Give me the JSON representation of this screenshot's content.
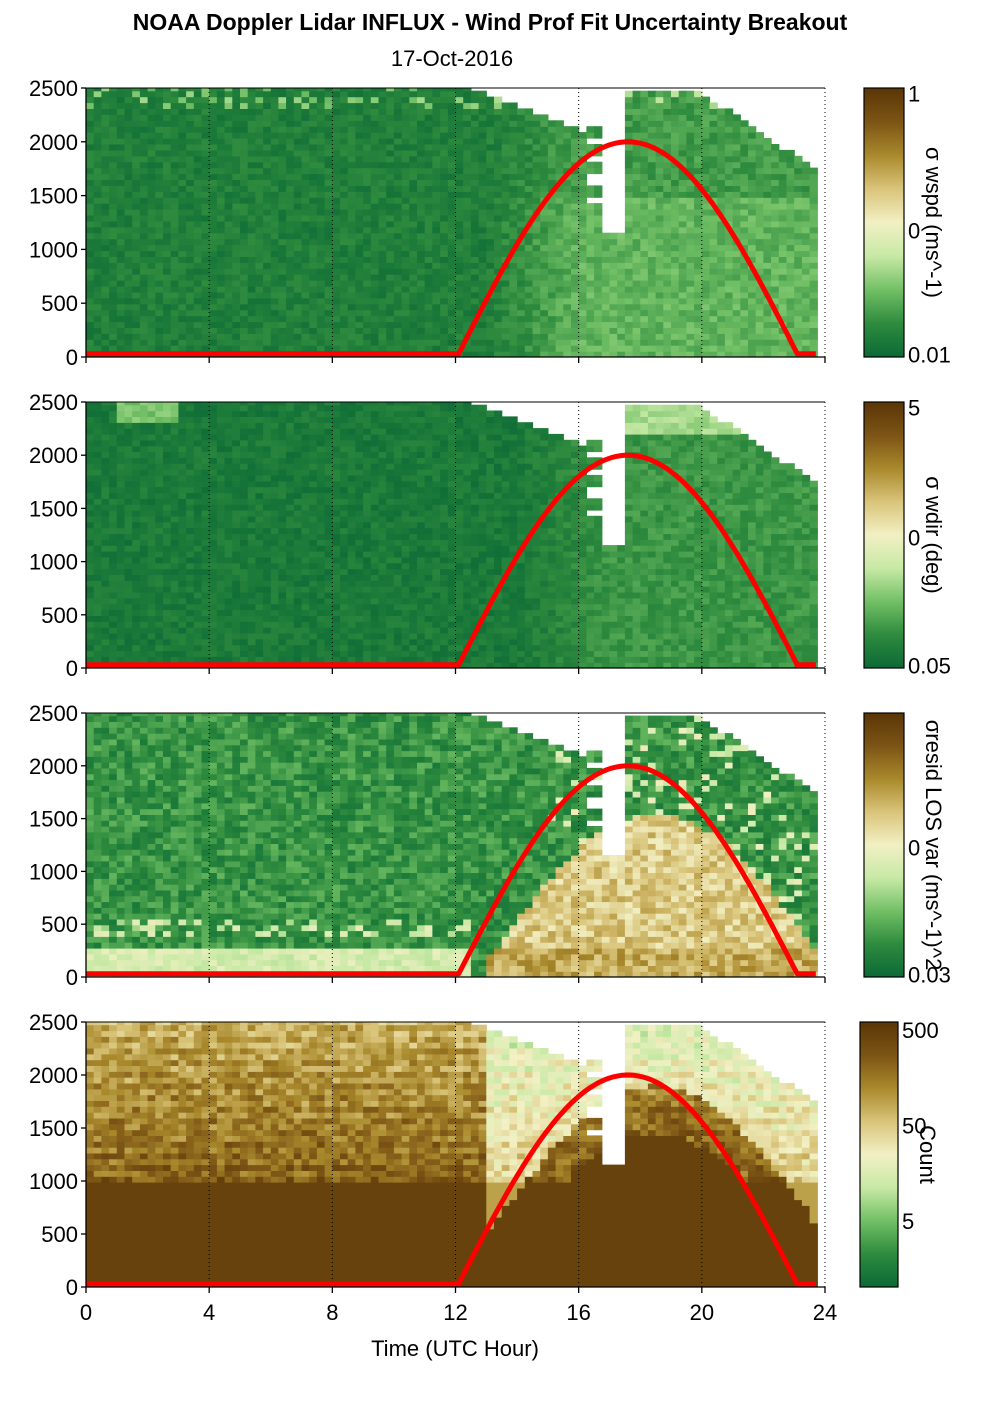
{
  "chart_data": [
    {
      "type": "heatmap",
      "panel": 1,
      "title": "NOAA Doppler Lidar INFLUX - Wind Prof Fit Uncertainty Breakout",
      "subtitle": "17-Oct-2016",
      "xlabel": "",
      "ylabel": "",
      "colorbar_label": "σ wspd (ms^-1)",
      "colorbar_ticks": [
        "1",
        "0",
        "0.01"
      ],
      "yticks": [
        "0",
        "500",
        "1000",
        "1500",
        "2000",
        "2500"
      ],
      "xlim": [
        0,
        24
      ],
      "ylim": [
        0,
        2500
      ],
      "colormap": [
        "#0b6a36",
        "#2e8b3e",
        "#72c066",
        "#c7e9a5",
        "#f2f0c4",
        "#d9c47a",
        "#a9892c",
        "#7c5415",
        "#5a3606"
      ],
      "field": "green-dominated; moderate green/light-green texture after 13 UTC below 1500 m; missing data (white) in upper levels after 13 UTC and columns near 16.7–17.5 UTC",
      "sun_elevation_curve": {
        "name": "",
        "color": "#ff0000",
        "x": [
          0,
          12,
          13,
          14,
          15,
          16,
          17,
          17.5,
          18,
          19,
          20,
          21,
          22,
          23,
          23.8
        ],
        "y": [
          20,
          20,
          500,
          950,
          1400,
          1750,
          1960,
          2000,
          1980,
          1790,
          1430,
          990,
          520,
          60,
          20
        ]
      }
    },
    {
      "type": "heatmap",
      "panel": 2,
      "xlabel": "",
      "ylabel": "",
      "colorbar_label": "σ wdir (deg)",
      "colorbar_ticks": [
        "5",
        "0",
        "0.05"
      ],
      "yticks": [
        "0",
        "500",
        "1000",
        "1500",
        "2000",
        "2500"
      ],
      "xlim": [
        0,
        24
      ],
      "ylim": [
        0,
        2500
      ],
      "colormap": [
        "#0b6a36",
        "#2e8b3e",
        "#72c066",
        "#c7e9a5",
        "#f2f0c4",
        "#d9c47a",
        "#a9892c",
        "#7c5415",
        "#5a3606"
      ],
      "field": "mostly dark green; light-green patches near top around 2 UTC and after 15 UTC; white missing region similar to panel 1",
      "sun_elevation_curve": {
        "name": "",
        "color": "#ff0000",
        "x": [
          0,
          12,
          13,
          14,
          15,
          16,
          17,
          17.5,
          18,
          19,
          20,
          21,
          22,
          23,
          23.8
        ],
        "y": [
          20,
          20,
          500,
          950,
          1400,
          1750,
          1960,
          2000,
          1980,
          1790,
          1430,
          990,
          520,
          60,
          20
        ]
      }
    },
    {
      "type": "heatmap",
      "panel": 3,
      "xlabel": "",
      "ylabel": "",
      "colorbar_label": "σresid LOS var (ms^-1)^2",
      "colorbar_ticks": [
        "0",
        "0.03"
      ],
      "yticks": [
        "0",
        "500",
        "1000",
        "1500",
        "2000",
        "2500"
      ],
      "xlim": [
        0,
        24
      ],
      "ylim": [
        0,
        2500
      ],
      "colormap": [
        "#0b6a36",
        "#2e8b3e",
        "#72c066",
        "#c7e9a5",
        "#f2f0c4",
        "#d9c47a",
        "#a9892c",
        "#7c5415",
        "#5a3606"
      ],
      "field": "green with light/cream band below ~300 m before 12 UTC; tan/brown convective boundary layer after 13 UTC rising to ~1400 m near 20 UTC",
      "sun_elevation_curve": {
        "name": "",
        "color": "#ff0000",
        "x": [
          0,
          12,
          13,
          14,
          15,
          16,
          17,
          17.5,
          18,
          19,
          20,
          21,
          22,
          23,
          23.8
        ],
        "y": [
          20,
          20,
          500,
          950,
          1400,
          1750,
          1960,
          2000,
          1980,
          1790,
          1430,
          990,
          520,
          60,
          20
        ]
      }
    },
    {
      "type": "heatmap",
      "panel": 4,
      "xlabel": "Time (UTC Hour)",
      "ylabel": "",
      "colorbar_label": "Count",
      "colorbar_ticks": [
        "500",
        "50",
        "5"
      ],
      "yticks": [
        "0",
        "500",
        "1000",
        "1500",
        "2000",
        "2500"
      ],
      "xticks": [
        "0",
        "4",
        "8",
        "12",
        "16",
        "20",
        "24"
      ],
      "xlim": [
        0,
        24
      ],
      "ylim": [
        0,
        2500
      ],
      "colormap": [
        "#0b6a36",
        "#2e8b3e",
        "#72c066",
        "#c7e9a5",
        "#f2f0c4",
        "#d9c47a",
        "#a9892c",
        "#7c5415",
        "#5a3606"
      ],
      "field": "dark brown (high counts) below ~1000 m before 13 UTC and below ~1300 m after; banded tan above; light green/cream at upper edge; white missing region same as above",
      "sun_elevation_curve": {
        "name": "",
        "color": "#ff0000",
        "x": [
          0,
          12,
          13,
          14,
          15,
          16,
          17,
          17.5,
          18,
          19,
          20,
          21,
          22,
          23,
          23.8
        ],
        "y": [
          20,
          20,
          500,
          950,
          1400,
          1750,
          1960,
          2000,
          1980,
          1790,
          1430,
          990,
          520,
          60,
          20
        ]
      }
    }
  ],
  "figure": {
    "title": "NOAA Doppler Lidar INFLUX - Wind Prof Fit Uncertainty Breakout",
    "subtitle": "17-Oct-2016",
    "xlabel": "Time (UTC Hour)"
  }
}
